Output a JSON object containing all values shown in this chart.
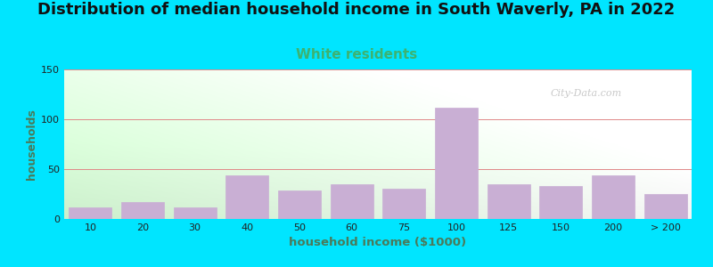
{
  "title": "Distribution of median household income in South Waverly, PA in 2022",
  "subtitle": "White residents",
  "xlabel": "household income ($1000)",
  "ylabel": "households",
  "bar_color": "#c9afd4",
  "background_outer": "#00e5ff",
  "title_fontsize": 13,
  "subtitle_fontsize": 11,
  "subtitle_color": "#3cb371",
  "ylabel_color": "#4a7a5a",
  "xlabel_color": "#4a7a5a",
  "ylim": [
    0,
    150
  ],
  "yticks": [
    0,
    50,
    100,
    150
  ],
  "categories": [
    "10",
    "20",
    "30",
    "40",
    "50",
    "60",
    "75",
    "100",
    "125",
    "150",
    "200",
    "> 200"
  ],
  "values": [
    12,
    17,
    12,
    44,
    29,
    35,
    30,
    112,
    35,
    33,
    44,
    25
  ],
  "watermark": "City-Data.com",
  "grid_color": "#e08888",
  "grid_linewidth": 0.7
}
